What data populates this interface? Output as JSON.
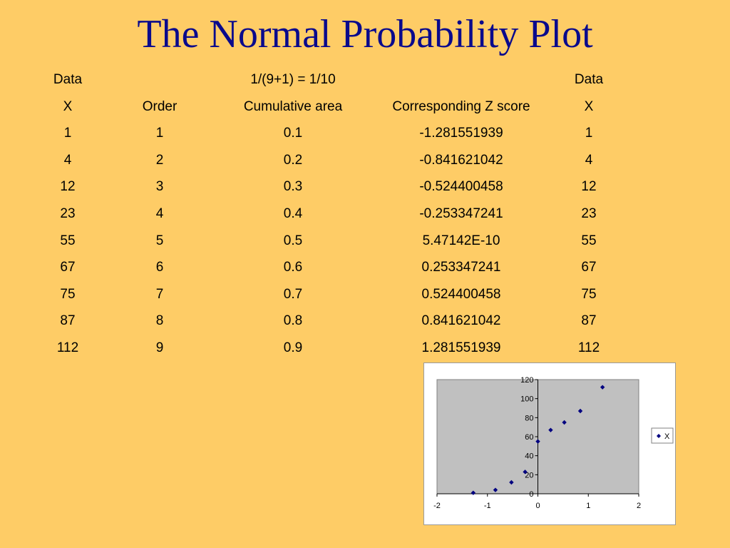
{
  "slide": {
    "title": "The Normal Probability Plot"
  },
  "table": {
    "header_row1": [
      "Data",
      "",
      "1/(9+1) = 1/10",
      "",
      "Data"
    ],
    "header_row2": [
      "X",
      "Order",
      "Cumulative area",
      "Corresponding Z score",
      "X"
    ],
    "rows": [
      [
        "1",
        "1",
        "0.1",
        "-1.281551939",
        "1"
      ],
      [
        "4",
        "2",
        "0.2",
        "-0.841621042",
        "4"
      ],
      [
        "12",
        "3",
        "0.3",
        "-0.524400458",
        "12"
      ],
      [
        "23",
        "4",
        "0.4",
        "-0.253347241",
        "23"
      ],
      [
        "55",
        "5",
        "0.5",
        "5.47142E-10",
        "55"
      ],
      [
        "67",
        "6",
        "0.6",
        "0.253347241",
        "67"
      ],
      [
        "75",
        "7",
        "0.7",
        "0.524400458",
        "75"
      ],
      [
        "87",
        "8",
        "0.8",
        "0.841621042",
        "87"
      ],
      [
        "112",
        "9",
        "0.9",
        "1.281551939",
        "112"
      ]
    ]
  },
  "chart_data": {
    "type": "scatter",
    "title": "",
    "xlabel": "",
    "ylabel": "",
    "xlim": [
      -2,
      2
    ],
    "ylim": [
      0,
      120
    ],
    "xticks": [
      "-2",
      "-1",
      "0",
      "1",
      "2"
    ],
    "yticks": [
      "0",
      "20",
      "40",
      "60",
      "80",
      "100",
      "120"
    ],
    "grid": false,
    "legend_position": "right",
    "plot_area_color": "#C0C0C0",
    "marker_color": "#000080",
    "marker": "diamond",
    "series": [
      {
        "name": "X",
        "x": [
          -1.281551939,
          -0.841621042,
          -0.524400458,
          -0.253347241,
          5.47142e-10,
          0.253347241,
          0.524400458,
          0.841621042,
          1.281551939
        ],
        "y": [
          1,
          4,
          12,
          23,
          55,
          67,
          75,
          87,
          112
        ]
      }
    ]
  }
}
